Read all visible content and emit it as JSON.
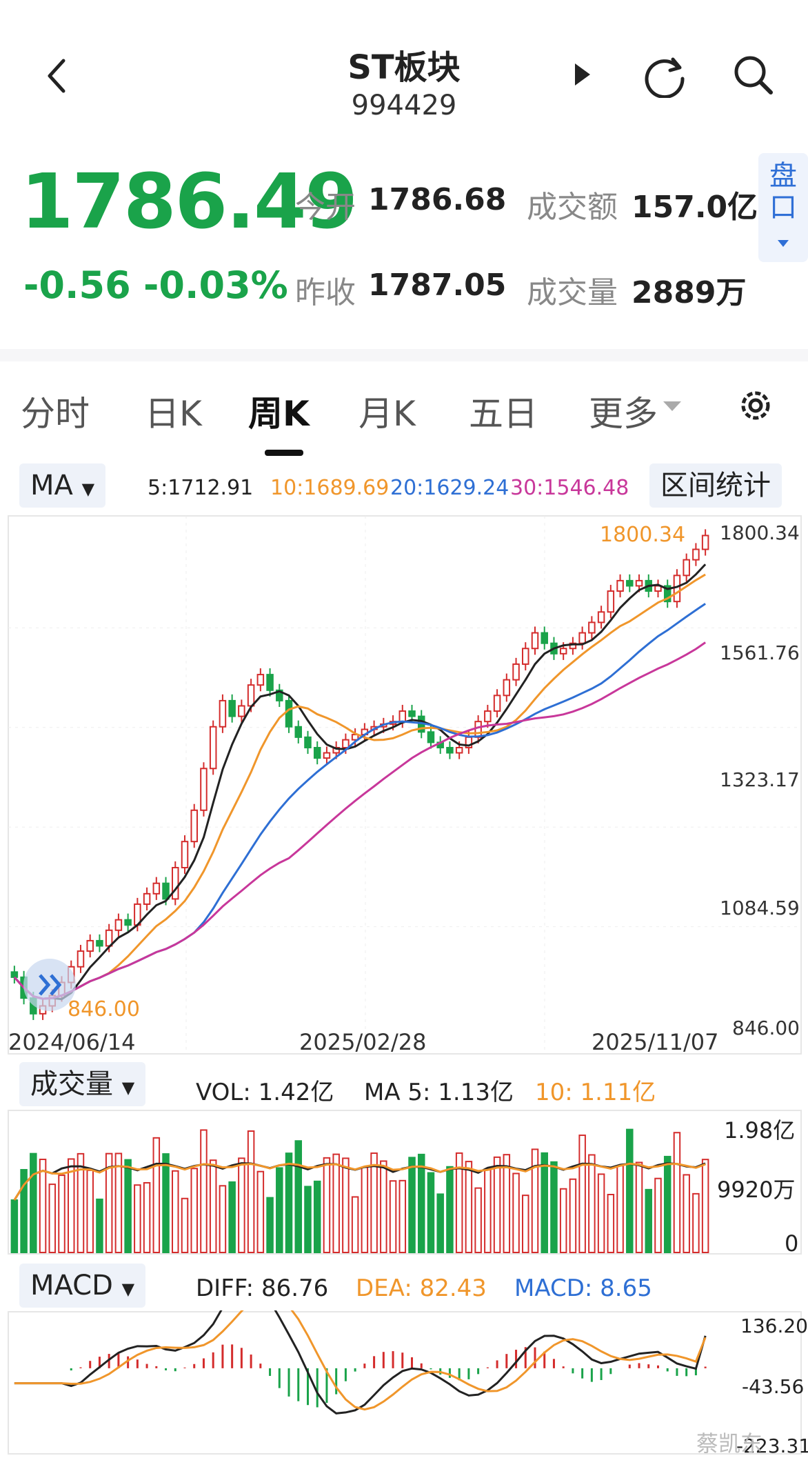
{
  "header": {
    "title": "ST板块",
    "code": "994429"
  },
  "quote": {
    "price": "1786.49",
    "change": "-0.56",
    "change_pct": "-0.03%",
    "open_label": "今开",
    "open": "1786.68",
    "prev_label": "昨收",
    "prev_close": "1787.05",
    "amount_label": "成交额",
    "amount": "157.0亿",
    "volume_label": "成交量",
    "volume": "2889万",
    "pankou_label": "盘口",
    "color_down": "#1aa34a"
  },
  "tabs": [
    {
      "label": "分时"
    },
    {
      "label": "日K"
    },
    {
      "label": "周K",
      "active": true
    },
    {
      "label": "月K"
    },
    {
      "label": "五日"
    },
    {
      "label": "更多"
    }
  ],
  "ma_bar": {
    "button": "MA",
    "ma5": "5:1712.91",
    "ma10": "10:1689.69",
    "ma20": "20:1629.24",
    "ma30": "30:1546.48",
    "range_stats": "区间统计"
  },
  "price_panel": {
    "y_ticks": [
      "1800.34",
      "1561.76",
      "1323.17",
      "1084.59",
      "846.00"
    ],
    "max_label": "1800.34",
    "min_label": "846.00",
    "dates": [
      "2024/06/14",
      "2025/02/28",
      "2025/11/07"
    ]
  },
  "vol_bar": {
    "button": "成交量",
    "vol": "VOL: 1.42亿",
    "ma5": "MA 5: 1.13亿",
    "ma10": "10: 1.11亿"
  },
  "vol_panel": {
    "y_ticks": [
      "1.98亿",
      "9920万",
      "0"
    ]
  },
  "macd_bar": {
    "button": "MACD",
    "diff": "DIFF: 86.76",
    "dea": "DEA: 82.43",
    "macd": "MACD: 8.65"
  },
  "macd_panel": {
    "y_ticks": [
      "136.20",
      "-43.56",
      "-223.31"
    ]
  },
  "watermark": "蔡凯东",
  "colors": {
    "up": "#d42c2c",
    "down": "#1aa34a",
    "ma5": "#222222",
    "ma10": "#f0962b",
    "ma20": "#2e6fd4",
    "ma30": "#c8379a"
  },
  "chart_data": {
    "type": "candlestick",
    "x": [
      "2024/06/14",
      "2025/02/28",
      "2025/11/07"
    ],
    "ylim": [
      846.0,
      1800.34
    ],
    "candles_close": [
      940,
      900,
      870,
      885,
      905,
      930,
      960,
      990,
      1010,
      1000,
      1030,
      1050,
      1040,
      1080,
      1100,
      1120,
      1090,
      1150,
      1200,
      1260,
      1340,
      1420,
      1470,
      1440,
      1460,
      1500,
      1520,
      1490,
      1470,
      1420,
      1400,
      1380,
      1360,
      1370,
      1380,
      1395,
      1405,
      1415,
      1420,
      1425,
      1430,
      1450,
      1440,
      1410,
      1390,
      1380,
      1370,
      1380,
      1400,
      1430,
      1450,
      1480,
      1510,
      1540,
      1570,
      1600,
      1580,
      1560,
      1570,
      1580,
      1600,
      1620,
      1640,
      1680,
      1700,
      1690,
      1700,
      1680,
      1690,
      1660,
      1710,
      1740,
      1760,
      1786.49
    ],
    "vol_ylim": [
      0,
      1.98
    ],
    "macd_ylim": [
      -223.31,
      136.2
    ],
    "last": {
      "ma5": 1712.91,
      "ma10": 1689.69,
      "ma20": 1629.24,
      "ma30": 1546.48,
      "diff": 86.76,
      "dea": 82.43,
      "macd": 8.65,
      "vol": 1.42,
      "vol_ma5": 1.13,
      "vol_ma10": 1.11
    }
  }
}
